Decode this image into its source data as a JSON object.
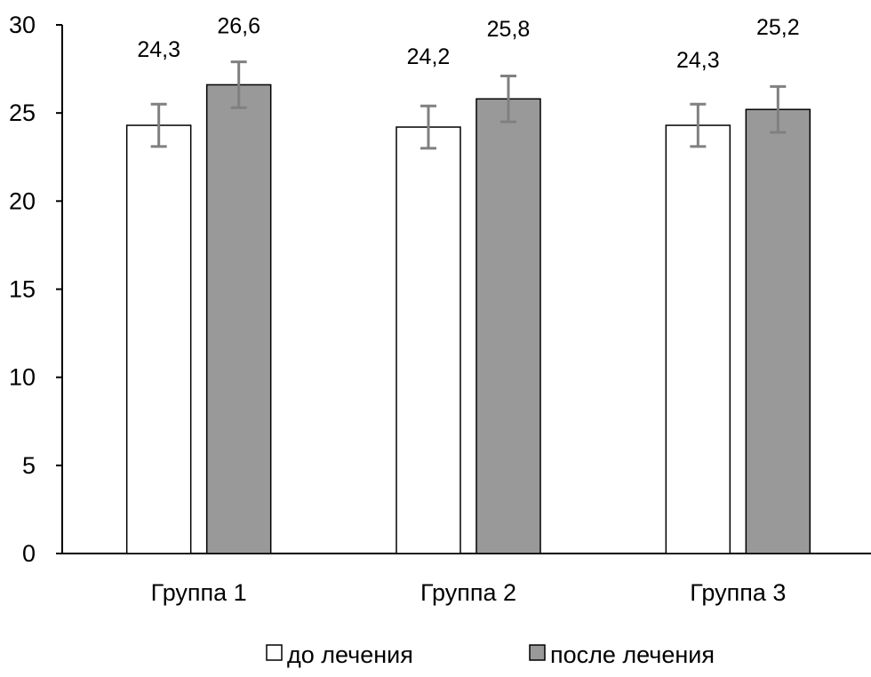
{
  "chart_data": {
    "type": "bar",
    "categories": [
      "Группа 1",
      "Группа 2",
      "Группа 3"
    ],
    "series": [
      {
        "name": "до лечения",
        "values": [
          24.3,
          24.2,
          24.3
        ],
        "value_labels": [
          "24,3",
          "24,2",
          "24,3"
        ],
        "error": [
          1.2,
          1.2,
          1.2
        ],
        "color": "#ffffff"
      },
      {
        "name": "после лечения",
        "values": [
          26.6,
          25.8,
          25.2
        ],
        "value_labels": [
          "26,6",
          "25,8",
          "25,2"
        ],
        "error": [
          1.3,
          1.3,
          1.3
        ],
        "color": "#999999"
      }
    ],
    "ylim": [
      0,
      30
    ],
    "yticks": [
      "0",
      "5",
      "10",
      "15",
      "20",
      "25",
      "30"
    ],
    "ytick_values": [
      0,
      5,
      10,
      15,
      20,
      25,
      30
    ],
    "grid": false,
    "legend_position": "bottom",
    "error_bar_color": "#808080"
  }
}
